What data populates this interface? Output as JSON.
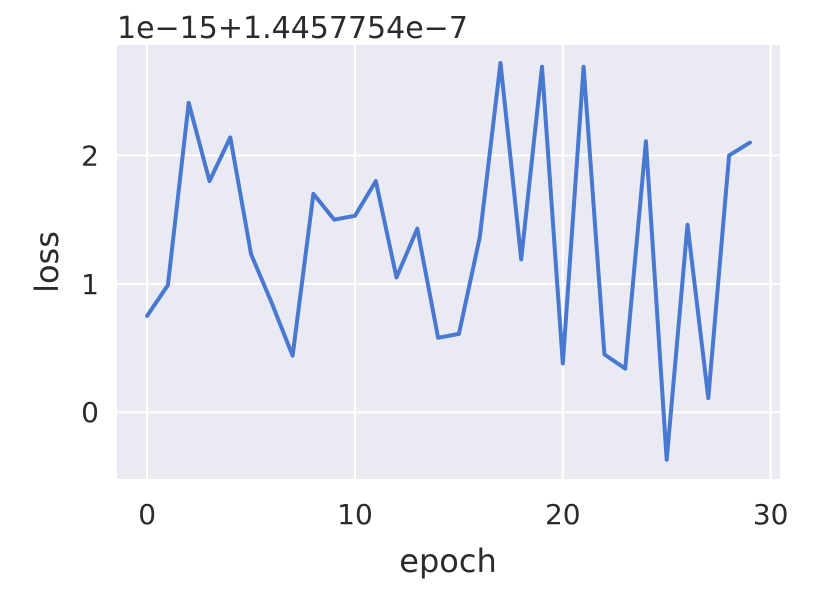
{
  "chart_data": {
    "type": "line",
    "title": "",
    "xlabel": "epoch",
    "ylabel": "loss",
    "offset_text": "1e−15+1.4457754e−7",
    "xlim": [
      -1.45,
      30.45
    ],
    "ylim": [
      -0.52,
      2.86
    ],
    "xticks": [
      0,
      10,
      20,
      30
    ],
    "yticks": [
      0,
      1,
      2
    ],
    "grid": true,
    "style": "seaborn-darkgrid",
    "colors": {
      "line": "#4878CF",
      "background": "#EAEAF2",
      "grid": "#FFFFFF"
    },
    "series": [
      {
        "x": [
          0,
          1,
          2,
          3,
          4,
          5,
          6,
          7,
          8,
          9,
          10,
          11,
          12,
          13,
          14,
          15,
          16,
          17,
          18,
          19,
          20,
          21,
          22,
          23,
          24,
          25,
          26,
          27,
          28,
          29
        ],
        "values": [
          0.75,
          0.99,
          2.41,
          1.8,
          2.14,
          1.23,
          0.85,
          0.44,
          1.7,
          1.5,
          1.53,
          1.8,
          1.05,
          1.43,
          0.58,
          0.61,
          1.36,
          2.72,
          1.19,
          2.69,
          0.38,
          2.69,
          0.45,
          0.34,
          2.11,
          -0.37,
          1.46,
          0.11,
          2.0,
          2.1
        ]
      }
    ]
  }
}
